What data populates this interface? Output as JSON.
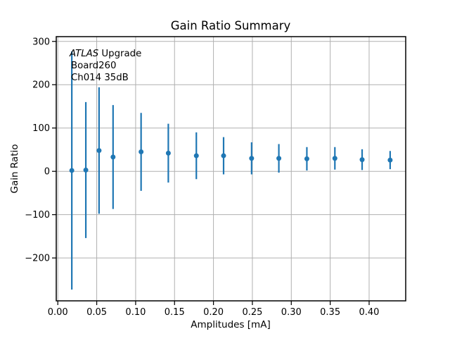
{
  "figure": {
    "background": "#ffffff"
  },
  "chart_data": {
    "type": "scatter",
    "subtype": "errorbar",
    "title": "Gain Ratio Summary",
    "xlabel": "Amplitudes [mA]",
    "ylabel": "Gain Ratio",
    "annotation": {
      "line1_italic": "ATLAS",
      "line1_rest": " Upgrade",
      "line2": "Board260",
      "line3": "Ch014 35dB"
    },
    "x": [
      0.018,
      0.036,
      0.053,
      0.071,
      0.107,
      0.142,
      0.178,
      0.213,
      0.249,
      0.284,
      0.32,
      0.356,
      0.391,
      0.427
    ],
    "y": [
      2,
      3,
      48,
      33,
      45,
      42,
      36,
      36,
      30,
      30,
      29,
      30,
      27,
      26
    ],
    "yerr": [
      275,
      157,
      146,
      120,
      90,
      68,
      54,
      43,
      37,
      33,
      27,
      26,
      24,
      21
    ],
    "xlim": [
      -0.002,
      0.447
    ],
    "ylim": [
      -299,
      311
    ],
    "xticks": {
      "values": [
        0.0,
        0.05,
        0.1,
        0.15,
        0.2,
        0.25,
        0.3,
        0.35,
        0.4
      ],
      "labels": [
        "0.00",
        "0.05",
        "0.10",
        "0.15",
        "0.20",
        "0.25",
        "0.30",
        "0.35",
        "0.40"
      ]
    },
    "yticks": {
      "values": [
        -200,
        -100,
        0,
        100,
        200,
        300
      ],
      "labels": [
        "−200",
        "−100",
        "0",
        "100",
        "200",
        "300"
      ]
    },
    "grid": true,
    "legend": null,
    "marker": "circle",
    "colors": {
      "series": "#1f77b4",
      "grid": "#b0b0b0",
      "spine": "#000000",
      "text": "#000000",
      "background": "#ffffff"
    }
  }
}
